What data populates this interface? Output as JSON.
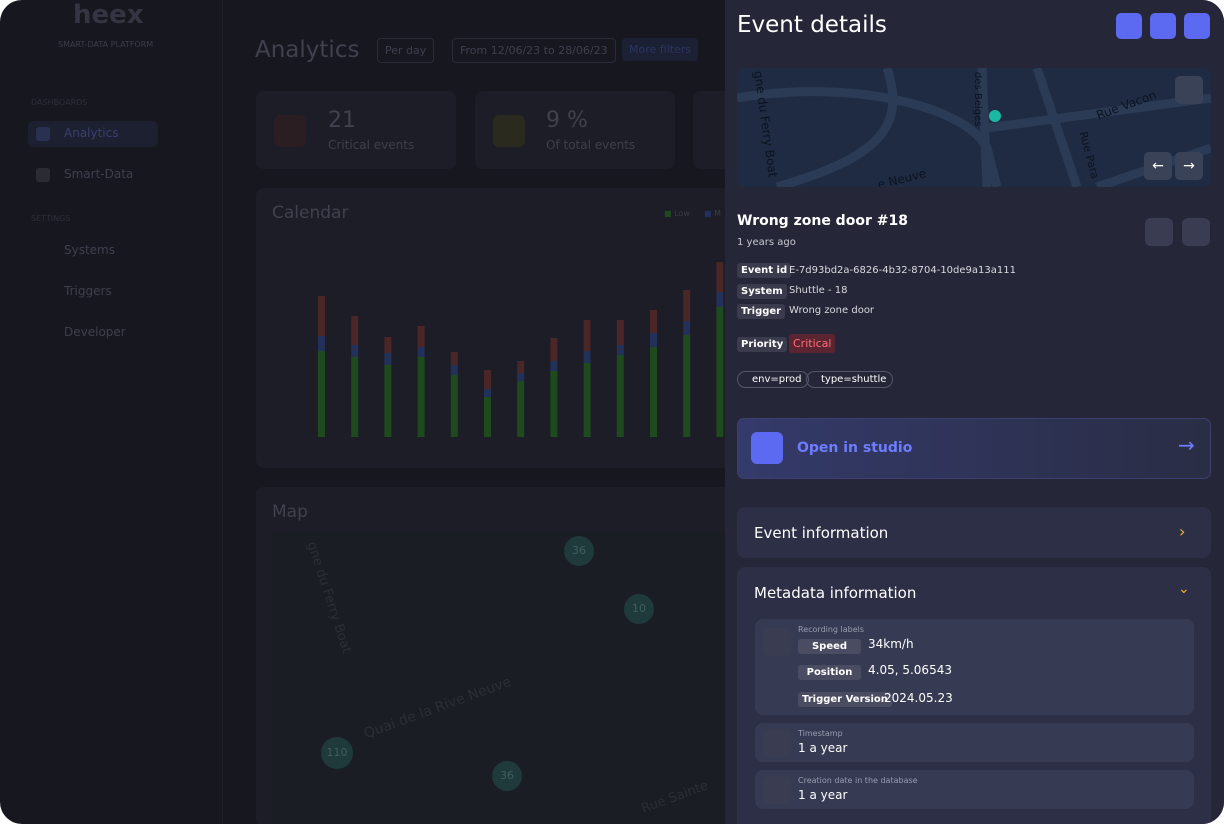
{
  "sidebar": {
    "logo": "heex",
    "tagline": "SMART-DATA PLATFORM",
    "sections": [
      {
        "title": "DASHBOARDS",
        "items": [
          "Analytics",
          "Smart-Data"
        ]
      },
      {
        "title": "SETTINGS",
        "items": [
          "Systems",
          "Triggers",
          "Developer"
        ]
      }
    ]
  },
  "header": {
    "title": "Analytics",
    "period": "Per day",
    "range": "From 12/06/23 to 28/06/23",
    "filters": "More filters"
  },
  "stats": [
    {
      "value": "21",
      "label": "Critical events"
    },
    {
      "value": "9 %",
      "label": "Of total events"
    }
  ],
  "calendar": {
    "title": "Calendar",
    "legend": [
      "Low",
      "M"
    ],
    "bars": [
      [
        86,
        15,
        40
      ],
      [
        80,
        12,
        29
      ],
      [
        72,
        12,
        16
      ],
      [
        80,
        10,
        21
      ],
      [
        62,
        10,
        13
      ],
      [
        40,
        8,
        19
      ],
      [
        56,
        8,
        12
      ],
      [
        66,
        10,
        23
      ],
      [
        74,
        12,
        31
      ],
      [
        82,
        10,
        25
      ],
      [
        90,
        14,
        23
      ],
      [
        102,
        14,
        31
      ],
      [
        130,
        15,
        30
      ]
    ]
  },
  "map": {
    "title": "Map",
    "streets": [
      "gne du Ferry Boat",
      "Quai de la Rive Neuve",
      "Rue Sainte"
    ],
    "clusters": [
      "36",
      "10",
      "110",
      "36"
    ]
  },
  "panel": {
    "title": "Event details",
    "map_labels": [
      "gne du Ferry Boat",
      "des Belges",
      "Rue Vacon",
      "Rue Para",
      "e Neuve"
    ],
    "event_name": "Wrong zone door #18",
    "age": "1 years ago",
    "fields": [
      {
        "label": "Event id",
        "value": "E-7d93bd2a-6826-4b32-8704-10de9a13a111"
      },
      {
        "label": "System",
        "value": "Shuttle - 18"
      },
      {
        "label": "Trigger",
        "value": "Wrong zone door"
      }
    ],
    "priority": {
      "label": "Priority",
      "value": "Critical"
    },
    "tags": [
      "env=prod",
      "type=shuttle"
    ],
    "studio": "Open in studio",
    "event_info": "Event information",
    "metadata": {
      "title": "Metadata information",
      "recording": {
        "title": "Recording labels",
        "labels": [
          {
            "key": "Speed",
            "value": "34km/h"
          },
          {
            "key": "Position",
            "value": "4.05, 5.06543"
          },
          {
            "key": "Trigger Version",
            "value": "2024.05.23"
          }
        ]
      },
      "items": [
        {
          "title": "Timestamp",
          "value": "1 a year"
        },
        {
          "title": "Creation date in the database",
          "value": "1 a year"
        }
      ]
    }
  }
}
